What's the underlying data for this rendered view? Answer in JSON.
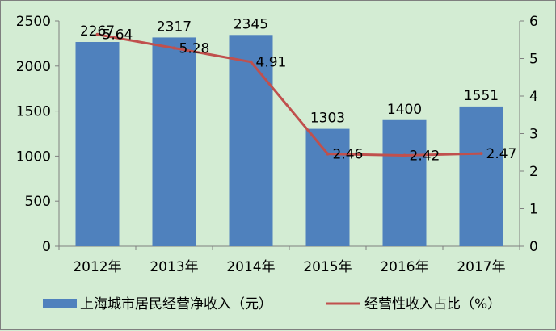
{
  "chart_data": {
    "type": "bar+line",
    "categories": [
      "2012年",
      "2013年",
      "2014年",
      "2015年",
      "2016年",
      "2017年"
    ],
    "series": [
      {
        "name": "上海城市居民经营净收入（元）",
        "type": "bar",
        "axis": "left",
        "color": "#4f81bd",
        "values": [
          2267,
          2317,
          2345,
          1303,
          1400,
          1551
        ],
        "labels": [
          "2267",
          "2317",
          "2345",
          "1303",
          "1400",
          "1551"
        ]
      },
      {
        "name": "经营性收入占比（%）",
        "type": "line",
        "axis": "right",
        "color": "#c0504d",
        "values": [
          5.64,
          5.28,
          4.91,
          2.46,
          2.42,
          2.47
        ],
        "labels": [
          "5.64",
          "5.28",
          "4.91",
          "2.46",
          "2.42",
          "2.47"
        ]
      }
    ],
    "y_left": {
      "min": 0,
      "max": 2500,
      "ticks": [
        "0",
        "500",
        "1000",
        "1500",
        "2000",
        "2500"
      ]
    },
    "y_right": {
      "min": 0,
      "max": 6,
      "ticks": [
        "0",
        "1",
        "2",
        "3",
        "4",
        "5",
        "6"
      ]
    },
    "legend_position": "bottom",
    "grid": false,
    "background": "#d3ecd3"
  }
}
